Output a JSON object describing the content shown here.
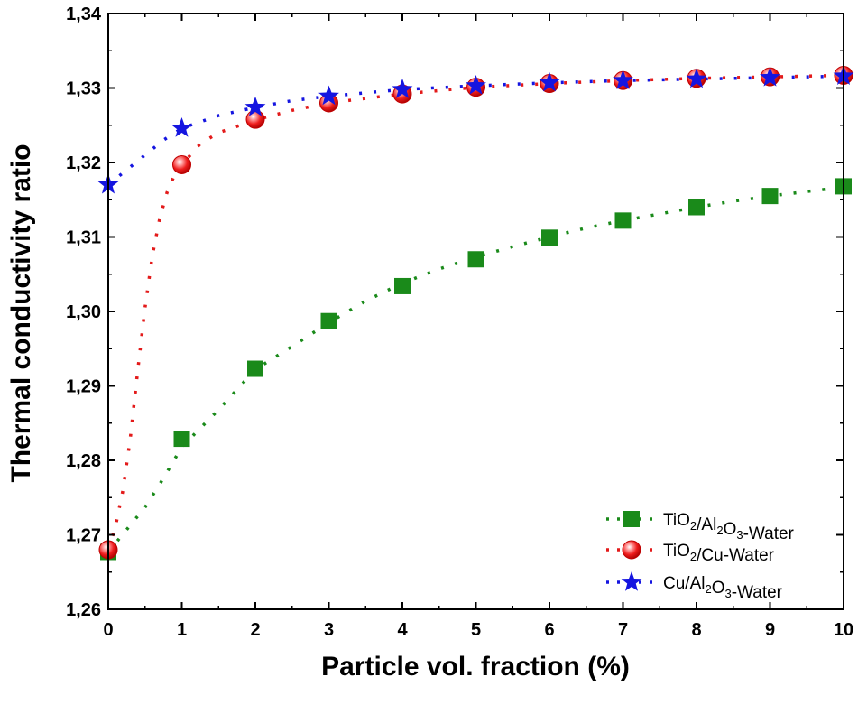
{
  "chart_data": {
    "type": "line",
    "title": "",
    "xlabel": "Particle vol. fraction (%)",
    "ylabel": "Thermal conductivity ratio",
    "xlim": [
      0,
      10
    ],
    "ylim": [
      1.26,
      1.34
    ],
    "x_ticks": [
      "0",
      "1",
      "2",
      "3",
      "4",
      "5",
      "6",
      "7",
      "8",
      "9",
      "10"
    ],
    "y_ticks": [
      "1,26",
      "1,27",
      "1,28",
      "1,29",
      "1,30",
      "1,31",
      "1,32",
      "1,33",
      "1,34"
    ],
    "legend_position": "bottom-right",
    "x": [
      0,
      1,
      2,
      3,
      4,
      5,
      6,
      7,
      8,
      9,
      10
    ],
    "series": [
      {
        "name": "TiO2/Al2O3-Water",
        "legend": {
          "a": "TiO",
          "a_sub": "2",
          "b": "/Al",
          "b_sub": "2",
          "c": "O",
          "c_sub": "3",
          "d": "-Water"
        },
        "color": "#1a8a1a",
        "marker": "square",
        "values": [
          1.2677,
          1.2829,
          1.2923,
          1.2987,
          1.3034,
          1.307,
          1.3099,
          1.3122,
          1.314,
          1.3155,
          1.3168
        ],
        "curve": [
          [
            0,
            1.2677
          ],
          [
            0.25,
            1.2707
          ],
          [
            0.5,
            1.2737
          ],
          [
            0.75,
            1.2776
          ],
          [
            1,
            1.2818
          ],
          [
            1.5,
            1.2868
          ],
          [
            2,
            1.2922
          ],
          [
            2.5,
            1.2953
          ],
          [
            3,
            1.2985
          ],
          [
            3.5,
            1.3014
          ],
          [
            4,
            1.3038
          ],
          [
            4.5,
            1.3057
          ],
          [
            5,
            1.3073
          ],
          [
            5.5,
            1.3087
          ],
          [
            6,
            1.31
          ],
          [
            6.5,
            1.3112
          ],
          [
            7,
            1.3122
          ],
          [
            7.5,
            1.3131
          ],
          [
            8,
            1.314
          ],
          [
            8.5,
            1.3148
          ],
          [
            9,
            1.3155
          ],
          [
            9.5,
            1.3161
          ],
          [
            10,
            1.3167
          ]
        ]
      },
      {
        "name": "TiO2/Cu-Water",
        "legend": {
          "a": "TiO",
          "a_sub": "2",
          "b": "/Cu-Water"
        },
        "color": "#e31a1a",
        "marker": "circle",
        "values": [
          1.268,
          1.3197,
          1.3258,
          1.328,
          1.3292,
          1.3301,
          1.3306,
          1.331,
          1.3313,
          1.3315,
          1.3317
        ],
        "curve": [
          [
            0,
            1.268
          ],
          [
            0.1,
            1.2712
          ],
          [
            0.2,
            1.276
          ],
          [
            0.3,
            1.283
          ],
          [
            0.4,
            1.292
          ],
          [
            0.5,
            1.3005
          ],
          [
            0.6,
            1.3075
          ],
          [
            0.7,
            1.3125
          ],
          [
            0.8,
            1.316
          ],
          [
            0.9,
            1.3183
          ],
          [
            1,
            1.3197
          ],
          [
            1.25,
            1.3225
          ],
          [
            1.5,
            1.324
          ],
          [
            2,
            1.3257
          ],
          [
            2.5,
            1.327
          ],
          [
            3,
            1.328
          ],
          [
            4,
            1.3292
          ],
          [
            5,
            1.3301
          ],
          [
            6,
            1.3306
          ],
          [
            7,
            1.331
          ],
          [
            8,
            1.3313
          ],
          [
            9,
            1.3315
          ],
          [
            10,
            1.3317
          ]
        ]
      },
      {
        "name": "Cu/Al2O3-Water",
        "legend": {
          "a": "Cu/Al",
          "a_sub": "2",
          "b": "O",
          "b_sub": "3",
          "c": "-Water"
        },
        "color": "#1515e0",
        "marker": "star",
        "values": [
          1.317,
          1.3246,
          1.3274,
          1.3289,
          1.3298,
          1.3303,
          1.3307,
          1.331,
          1.3312,
          1.3314,
          1.3316
        ],
        "curve": [
          [
            0,
            1.317
          ],
          [
            0.25,
            1.319
          ],
          [
            0.5,
            1.321
          ],
          [
            0.75,
            1.323
          ],
          [
            1,
            1.3246
          ],
          [
            1.5,
            1.3263
          ],
          [
            2,
            1.3274
          ],
          [
            2.5,
            1.3283
          ],
          [
            3,
            1.3289
          ],
          [
            4,
            1.3298
          ],
          [
            5,
            1.3303
          ],
          [
            6,
            1.3307
          ],
          [
            7,
            1.331
          ],
          [
            8,
            1.3312
          ],
          [
            9,
            1.3314
          ],
          [
            10,
            1.3316
          ]
        ]
      }
    ]
  }
}
